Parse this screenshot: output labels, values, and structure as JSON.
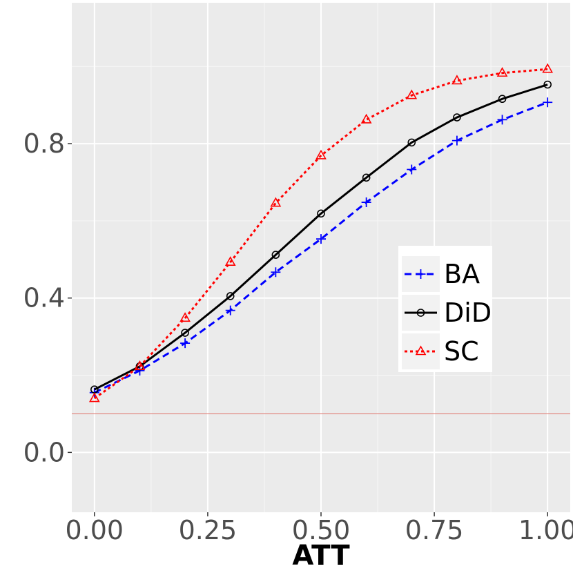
{
  "chart_data": {
    "type": "line",
    "title": "",
    "xlabel": "ATT",
    "ylabel": "",
    "x": [
      0.0,
      0.1,
      0.2,
      0.3,
      0.4,
      0.5,
      0.6,
      0.7,
      0.8,
      0.9,
      1.0
    ],
    "xlim": [
      -0.05,
      1.05
    ],
    "ylim": [
      -0.155,
      1.165
    ],
    "x_ticks": [
      0.0,
      0.25,
      0.5,
      0.75,
      1.0
    ],
    "x_tick_labels": [
      "0.00",
      "0.25",
      "0.50",
      "0.75",
      "1.00"
    ],
    "y_ticks": [
      0.0,
      0.4,
      0.8
    ],
    "y_tick_labels": [
      "0.0",
      "0.4",
      "0.8"
    ],
    "grid": true,
    "legend_position": "right",
    "reference_line": {
      "y": 0.1,
      "color": "#e07b73"
    },
    "series": [
      {
        "name": "BA",
        "color": "#0000ff",
        "dash": "dashed",
        "marker": "plus",
        "values": [
          0.155,
          0.212,
          0.283,
          0.368,
          0.467,
          0.553,
          0.648,
          0.733,
          0.808,
          0.862,
          0.907
        ]
      },
      {
        "name": "DiD",
        "color": "#000000",
        "dash": "solid",
        "marker": "circle",
        "values": [
          0.163,
          0.223,
          0.31,
          0.405,
          0.512,
          0.619,
          0.712,
          0.803,
          0.868,
          0.916,
          0.953
        ]
      },
      {
        "name": "SC",
        "color": "#ff0000",
        "dash": "dotted",
        "marker": "triangle",
        "values": [
          0.14,
          0.223,
          0.348,
          0.493,
          0.646,
          0.769,
          0.862,
          0.925,
          0.963,
          0.983,
          0.993
        ]
      }
    ]
  }
}
